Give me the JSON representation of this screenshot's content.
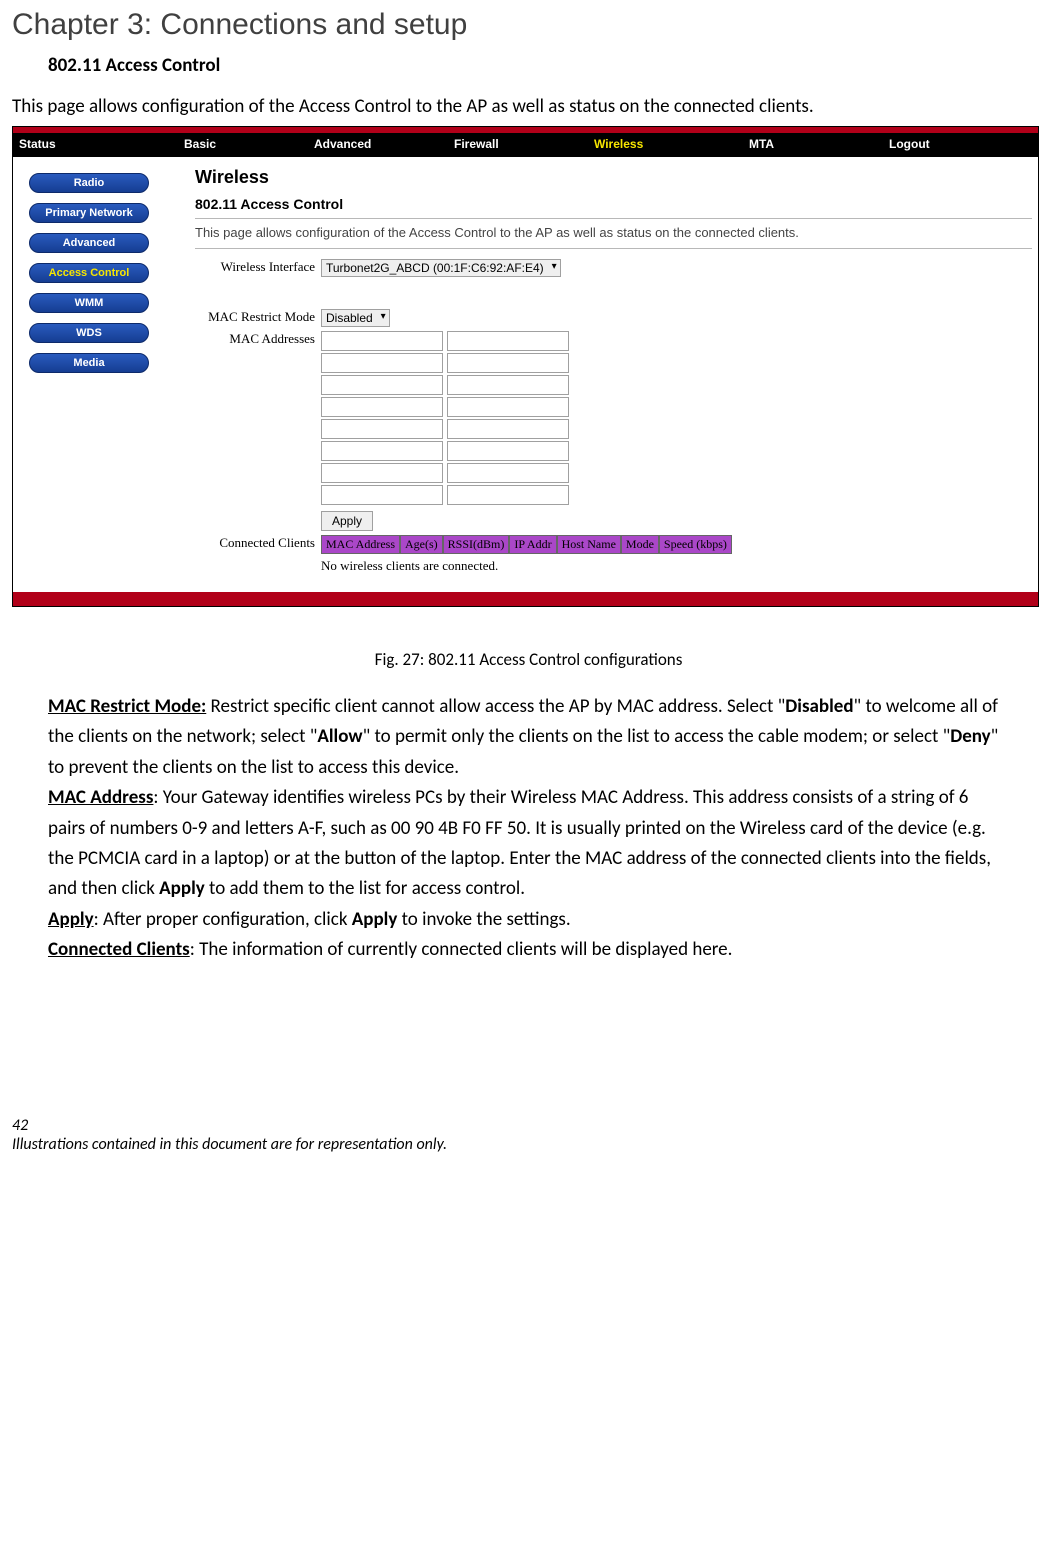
{
  "chapter_title": "Chapter 3: Connections and setup",
  "section_title": "802.11 Access Control",
  "intro": "This page allows configuration of the Access Control to the AP as well as status on the connected clients.",
  "caption": "Fig. 27: 802.11 Access Control configurations",
  "page_number": "42",
  "footer_note": "Illustrations contained in this document are for representation only.",
  "nav": {
    "items": [
      "Status",
      "Basic",
      "Advanced",
      "Firewall",
      "Wireless",
      "MTA",
      "Logout"
    ],
    "widths": [
      165,
      130,
      140,
      140,
      155,
      140,
      100
    ],
    "selected_index": 4
  },
  "sidemenu": {
    "items": [
      "Radio",
      "Primary Network",
      "Advanced",
      "Access Control",
      "WMM",
      "WDS",
      "Media"
    ],
    "selected_index": 3
  },
  "panel": {
    "heading": "Wireless",
    "subheading": "802.11 Access Control",
    "desc": "This page allows configuration of the Access Control to the AP as well as status on the connected clients.",
    "wi_label": "Wireless Interface",
    "wi_value": "Turbonet2G_ABCD (00:1F:C6:92:AF:E4)",
    "restrict_label": "MAC Restrict Mode",
    "restrict_value": "Disabled",
    "mac_label": "MAC Addresses",
    "apply_label": "Apply",
    "cc_label": "Connected Clients",
    "cc_headers": [
      "MAC Address",
      "Age(s)",
      "RSSI(dBm)",
      "IP Addr",
      "Host Name",
      "Mode",
      "Speed (kbps)"
    ],
    "cc_empty": "No wireless clients are connected."
  },
  "body": {
    "mac_restrict_term": "MAC Restrict Mode:",
    "mac_restrict_text_1": " Restrict specific client cannot allow access the AP by MAC address. Select \"",
    "disabled": "Disabled",
    "mac_restrict_text_2": "\" to welcome all of the clients on the network; select \"",
    "allow": "Allow",
    "mac_restrict_text_3": "\" to permit only the clients on the list to access the cable modem; or select \"",
    "deny": "Deny",
    "mac_restrict_text_4": "\" to prevent the clients on the list to access this device.",
    "mac_addr_term": "MAC Address",
    "mac_addr_text_1": ": Your Gateway identifies wireless PCs by their Wireless MAC Address. This address consists of a string of 6 pairs of numbers 0-9 and letters A-F, such as 00 90 4B F0 FF 50. It is usually printed on the Wireless card of the device (e.g. the PCMCIA card in a laptop) or at the button of the laptop. Enter the MAC address of the connected clients into the fields, and then click ",
    "apply_inline": "Apply",
    "mac_addr_text_2": " to add them to the list for access control.",
    "apply_term": "Apply",
    "apply_text_1": ": After proper configuration, click ",
    "apply_text_2": " to invoke the settings.",
    "cc_term": "Connected Clients",
    "cc_text": ": The information of currently connected clients will be displayed here."
  },
  "colors": {
    "accent_red": "#b10019",
    "nav_bg": "#000000",
    "nav_selected": "#f7e600",
    "pill_grad_top": "#2a5bbe",
    "pill_grad_bot": "#153d92",
    "cc_header_bg": "#aa47c8",
    "chapter_color": "#404040"
  }
}
